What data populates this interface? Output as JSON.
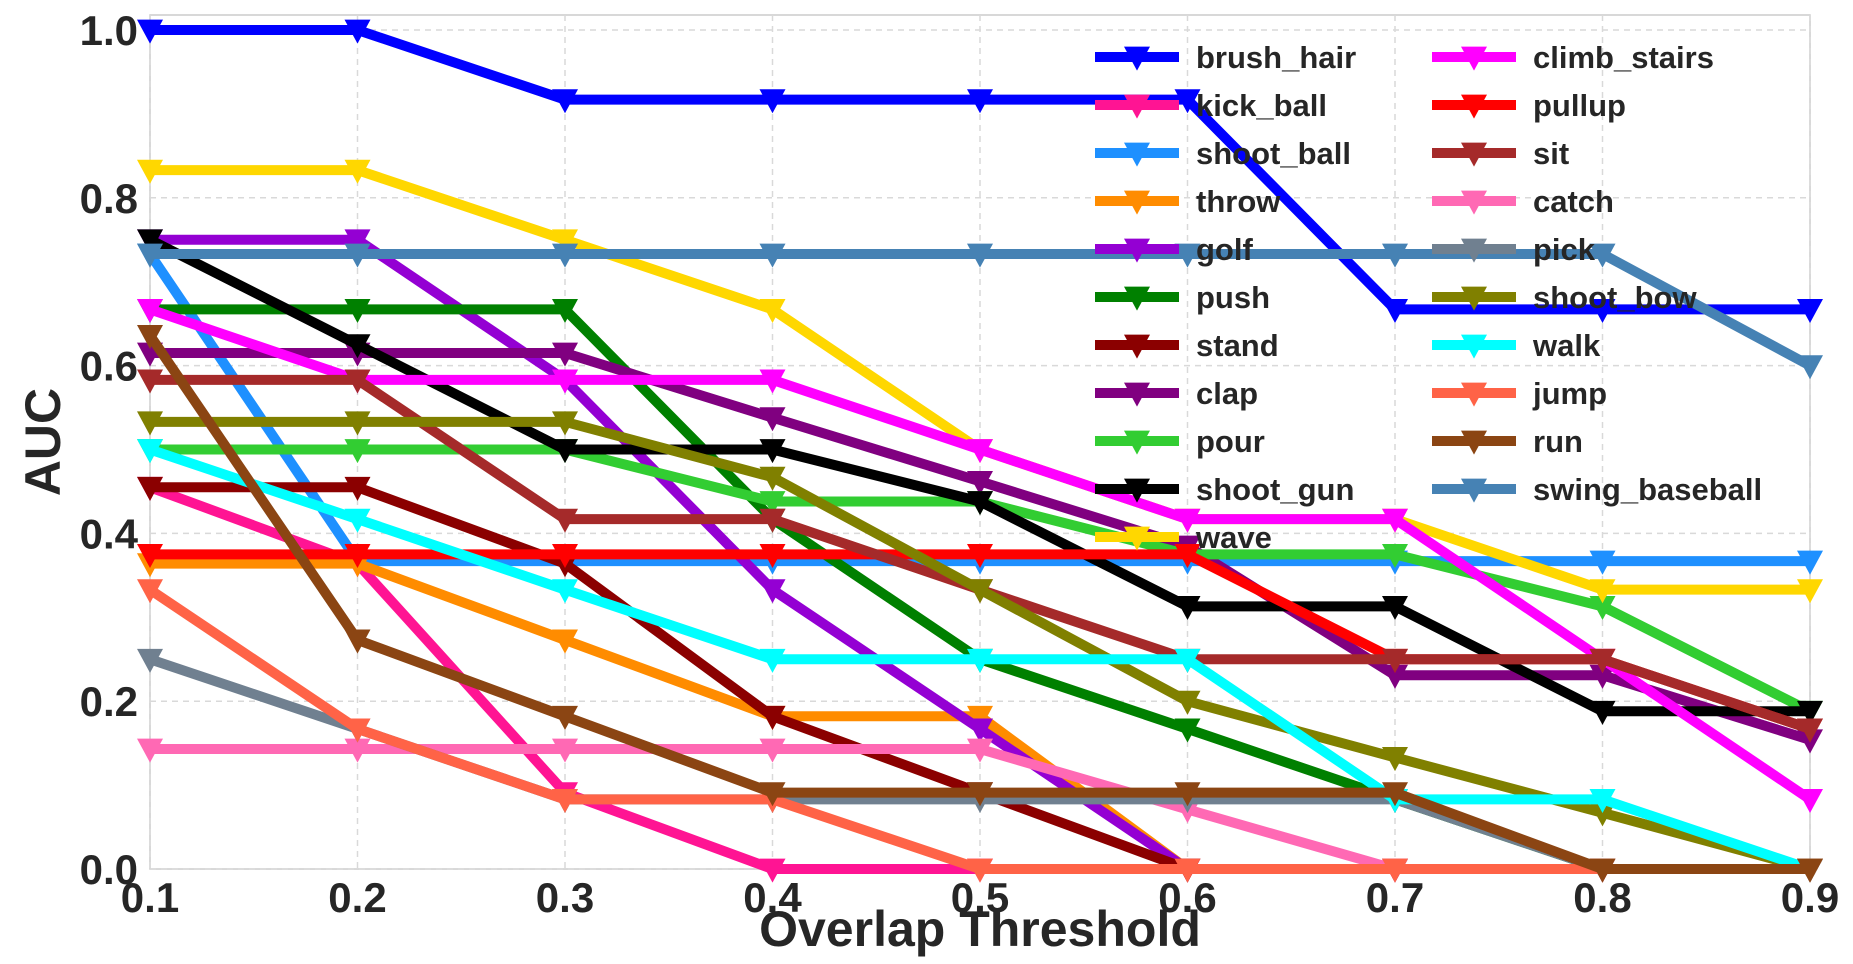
{
  "chart_data": {
    "type": "line",
    "xlabel": "Overlap Threshold",
    "ylabel": "AUC",
    "xlim": [
      0.1,
      0.9
    ],
    "ylim": [
      0.0,
      1.02
    ],
    "x": [
      0.1,
      0.2,
      0.3,
      0.4,
      0.5,
      0.6,
      0.7,
      0.8,
      0.9
    ],
    "x_ticks": [
      "0.1",
      "0.2",
      "0.3",
      "0.4",
      "0.5",
      "0.6",
      "0.7",
      "0.8",
      "0.9"
    ],
    "y_ticks": [
      0.0,
      0.2,
      0.4,
      0.6,
      0.8,
      1.0
    ],
    "y_tick_labels": [
      "0.0",
      "0.2",
      "0.4",
      "0.6",
      "0.8",
      "1.0"
    ],
    "grid": true,
    "marker": "triangle-down",
    "legend": {
      "position": "top-right",
      "columns": 2
    },
    "series": [
      {
        "name": "brush_hair",
        "color": "#0000ff",
        "values": [
          1.0,
          1.0,
          0.917,
          0.917,
          0.917,
          0.917,
          0.667,
          0.667,
          0.667
        ]
      },
      {
        "name": "kick_ball",
        "color": "#ff1493",
        "values": [
          0.455,
          0.364,
          0.091,
          0.0,
          0.0,
          0.0,
          0.0,
          0.0,
          0.0
        ]
      },
      {
        "name": "shoot_ball",
        "color": "#1e90ff",
        "values": [
          0.733,
          0.367,
          0.367,
          0.367,
          0.367,
          0.367,
          0.367,
          0.367,
          0.367
        ]
      },
      {
        "name": "throw",
        "color": "#ff8c00",
        "values": [
          0.364,
          0.364,
          0.273,
          0.182,
          0.182,
          0.0,
          0.0,
          0.0,
          0.0
        ]
      },
      {
        "name": "golf",
        "color": "#9400d3",
        "values": [
          0.75,
          0.75,
          0.583,
          0.333,
          0.167,
          0.0,
          0.0,
          0.0,
          0.0
        ]
      },
      {
        "name": "push",
        "color": "#008000",
        "values": [
          0.667,
          0.667,
          0.667,
          0.417,
          0.25,
          0.167,
          0.083,
          0.0,
          0.0
        ]
      },
      {
        "name": "stand",
        "color": "#8b0000",
        "values": [
          0.455,
          0.455,
          0.364,
          0.182,
          0.091,
          0.0,
          0.0,
          0.0,
          0.0
        ]
      },
      {
        "name": "clap",
        "color": "#800080",
        "values": [
          0.615,
          0.615,
          0.615,
          0.538,
          0.462,
          0.385,
          0.231,
          0.231,
          0.154
        ]
      },
      {
        "name": "pour",
        "color": "#32cd32",
        "values": [
          0.5,
          0.5,
          0.5,
          0.438,
          0.438,
          0.375,
          0.375,
          0.313,
          0.188
        ]
      },
      {
        "name": "shoot_gun",
        "color": "#000000",
        "values": [
          0.75,
          0.625,
          0.5,
          0.5,
          0.438,
          0.313,
          0.313,
          0.188,
          0.188
        ]
      },
      {
        "name": "wave",
        "color": "#ffd700",
        "values": [
          0.833,
          0.833,
          0.75,
          0.667,
          0.5,
          0.417,
          0.417,
          0.333,
          0.333
        ]
      },
      {
        "name": "climb_stairs",
        "color": "#ff00ff",
        "values": [
          0.667,
          0.583,
          0.583,
          0.583,
          0.5,
          0.417,
          0.417,
          0.25,
          0.083
        ]
      },
      {
        "name": "pullup",
        "color": "#ff0000",
        "values": [
          0.375,
          0.375,
          0.375,
          0.375,
          0.375,
          0.375,
          0.25,
          0.25,
          0.167
        ]
      },
      {
        "name": "sit",
        "color": "#a52a2a",
        "values": [
          0.583,
          0.583,
          0.417,
          0.417,
          0.333,
          0.25,
          0.25,
          0.25,
          0.167
        ]
      },
      {
        "name": "catch",
        "color": "#ff69b4",
        "values": [
          0.143,
          0.143,
          0.143,
          0.143,
          0.143,
          0.071,
          0.0,
          0.0,
          0.0
        ]
      },
      {
        "name": "pick",
        "color": "#708090",
        "values": [
          0.25,
          0.167,
          0.083,
          0.083,
          0.083,
          0.083,
          0.083,
          0.0,
          0.0
        ]
      },
      {
        "name": "shoot_bow",
        "color": "#808000",
        "values": [
          0.533,
          0.533,
          0.533,
          0.467,
          0.333,
          0.2,
          0.133,
          0.067,
          0.0
        ]
      },
      {
        "name": "walk",
        "color": "#00ffff",
        "values": [
          0.5,
          0.417,
          0.333,
          0.25,
          0.25,
          0.25,
          0.083,
          0.083,
          0.0
        ]
      },
      {
        "name": "jump",
        "color": "#ff6347",
        "values": [
          0.333,
          0.167,
          0.083,
          0.083,
          0.0,
          0.0,
          0.0,
          0.0,
          0.0
        ]
      },
      {
        "name": "run",
        "color": "#8b4513",
        "values": [
          0.636,
          0.273,
          0.182,
          0.091,
          0.091,
          0.091,
          0.091,
          0.0,
          0.0
        ]
      },
      {
        "name": "swing_baseball",
        "color": "#4682b4",
        "values": [
          0.733,
          0.733,
          0.733,
          0.733,
          0.733,
          0.733,
          0.733,
          0.733,
          0.6
        ]
      }
    ]
  }
}
